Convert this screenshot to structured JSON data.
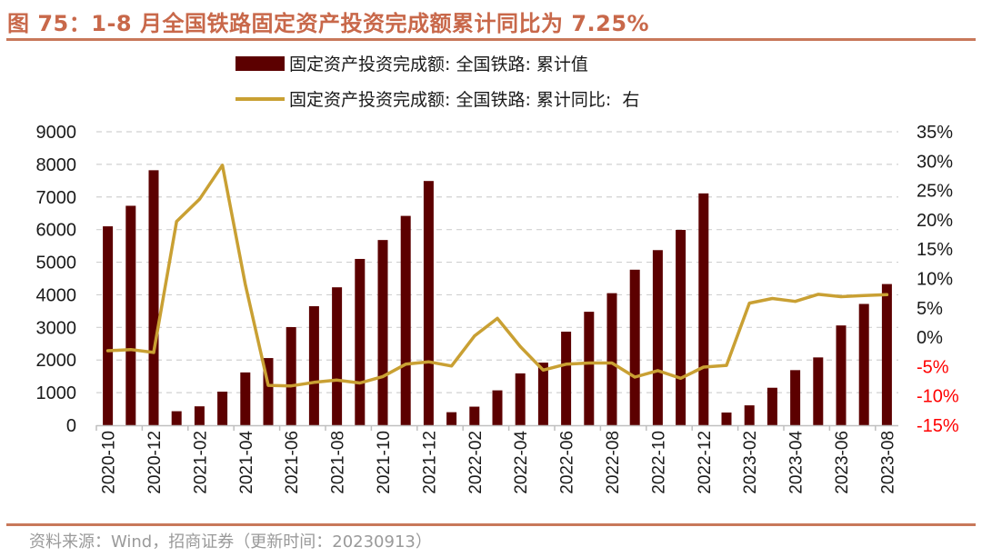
{
  "header": {
    "title": "图 75：1-8 月全国铁路固定资产投资完成额累计同比为 7.25%"
  },
  "footer": {
    "source": "资料来源：Wind，招商证券（更新时间：20230913）"
  },
  "colors": {
    "bar": "#5c0000",
    "line": "#c9a033",
    "accent": "#c8785a",
    "negative_tick": "#ff0000",
    "grid": "#d0d0d0"
  },
  "chart_data": {
    "type": "bar+line",
    "title": "1-8 月全国铁路固定资产投资完成额累计同比为 7.25%",
    "legend_position": "top-center",
    "grid": true,
    "x": [
      "2020-10",
      "2020-11",
      "2020-12",
      "2021-01",
      "2021-02",
      "2021-03",
      "2021-04",
      "2021-05",
      "2021-06",
      "2021-07",
      "2021-08",
      "2021-09",
      "2021-10",
      "2021-11",
      "2021-12",
      "2022-01",
      "2022-02",
      "2022-03",
      "2022-04",
      "2022-05",
      "2022-06",
      "2022-07",
      "2022-08",
      "2022-09",
      "2022-10",
      "2022-11",
      "2022-12",
      "2023-01",
      "2023-02",
      "2023-03",
      "2023-04",
      "2023-05",
      "2023-06",
      "2023-07",
      "2023-08"
    ],
    "x_tick_labels": [
      "2020-10",
      "2020-12",
      "2021-02",
      "2021-04",
      "2021-06",
      "2021-08",
      "2021-10",
      "2021-12",
      "2022-02",
      "2022-04",
      "2022-06",
      "2022-08",
      "2022-10",
      "2022-12",
      "2023-02",
      "2023-04",
      "2023-06",
      "2023-08"
    ],
    "y_left": {
      "ylim": [
        0,
        9000
      ],
      "ticks": [
        "0",
        "1000",
        "2000",
        "3000",
        "4000",
        "5000",
        "6000",
        "7000",
        "8000",
        "9000"
      ]
    },
    "y_right": {
      "ylim": [
        -15,
        35
      ],
      "ticks": [
        "-15%",
        "-10%",
        "-5%",
        "0%",
        "5%",
        "10%",
        "15%",
        "20%",
        "25%",
        "30%",
        "35%"
      ]
    },
    "series": [
      {
        "name": "固定资产投资完成额: 全国铁路: 累计值",
        "type": "bar",
        "axis": "left",
        "values": [
          6100,
          6730,
          7820,
          430,
          580,
          1030,
          1620,
          2060,
          3010,
          3650,
          4230,
          5100,
          5680,
          6420,
          7490,
          400,
          570,
          1070,
          1590,
          1920,
          2870,
          3480,
          4050,
          4770,
          5370,
          5990,
          7110,
          390,
          610,
          1150,
          1690,
          2080,
          3060,
          3720,
          4330
        ]
      },
      {
        "name": "固定资产投资完成额: 全国铁路: 累计同比:  右",
        "type": "line",
        "axis": "right",
        "values": [
          -2.3,
          -2.1,
          -2.6,
          19.7,
          23.5,
          29.3,
          9.0,
          -8.2,
          -8.3,
          -7.7,
          -7.3,
          -7.8,
          -6.7,
          -4.6,
          -4.2,
          -4.9,
          0.2,
          3.2,
          -1.6,
          -5.6,
          -4.6,
          -4.4,
          -4.4,
          -6.8,
          -5.7,
          -7.0,
          -5.1,
          -4.8,
          5.8,
          6.6,
          6.1,
          7.3,
          6.9,
          7.1,
          7.25
        ]
      }
    ]
  }
}
